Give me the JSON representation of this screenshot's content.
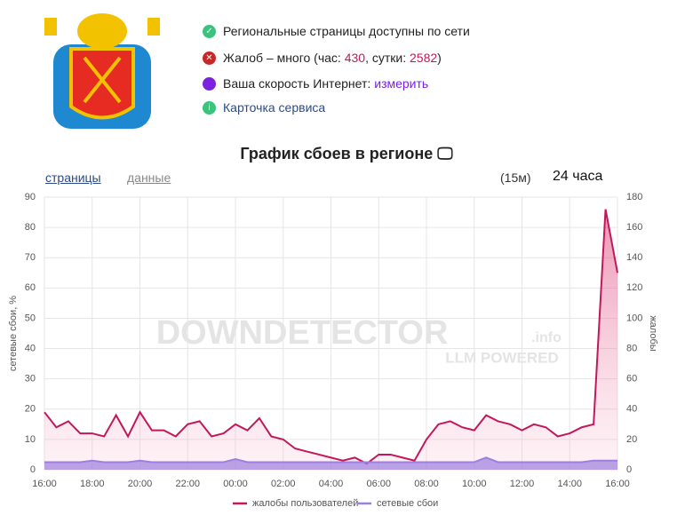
{
  "header": {
    "status": [
      {
        "text": "Региональные страницы доступны по сети"
      },
      {
        "parts": [
          "Жалоб – много (час: ",
          "430",
          ", сутки: ",
          "2582",
          ")"
        ]
      },
      {
        "text": "Ваша скорость Интернет:",
        "link": "измерить"
      },
      {
        "text": "Карточка сервиса"
      }
    ],
    "title": "График сбоев в регионе",
    "tabs": [
      "страницы",
      "данные"
    ],
    "interval": "(15м)",
    "period": "24 часа"
  },
  "watermark": {
    "brand": "DOWNDETECTOR",
    "suffix": ".info",
    "tagline": "LLM POWERED"
  },
  "chart_data": {
    "type": "line",
    "ylabel": "сетевые сбои, %",
    "y2label": "жалобы",
    "categories": [
      "16:00",
      null,
      null,
      null,
      "18:00",
      null,
      null,
      null,
      "20:00",
      null,
      null,
      null,
      "22:00",
      null,
      null,
      null,
      "00:00",
      null,
      null,
      null,
      "02:00",
      null,
      null,
      null,
      "04:00",
      null,
      null,
      null,
      "06:00",
      null,
      null,
      null,
      "08:00",
      null,
      null,
      null,
      "10:00",
      null,
      null,
      null,
      "12:00",
      null,
      null,
      null,
      "14:00",
      null,
      null,
      null,
      "16:00"
    ],
    "series": [
      {
        "name": "жалобы пользователей",
        "color": "#c2185b",
        "axis": "y2",
        "values": [
          38,
          28,
          32,
          24,
          24,
          22,
          36,
          22,
          38,
          26,
          26,
          22,
          30,
          32,
          22,
          24,
          30,
          26,
          34,
          22,
          20,
          14,
          12,
          10,
          8,
          6,
          8,
          4,
          10,
          10,
          8,
          6,
          20,
          30,
          32,
          28,
          26,
          36,
          32,
          30,
          26,
          30,
          28,
          22,
          24,
          28,
          30,
          172,
          130
        ]
      },
      {
        "name": "сетевые сбои",
        "color": "#9c7fe0",
        "values": [
          2.5,
          2.5,
          2.5,
          2.5,
          3,
          2.5,
          2.5,
          2.5,
          3,
          2.5,
          2.5,
          2.5,
          2.5,
          2.5,
          2.5,
          2.5,
          3.5,
          2.5,
          2.5,
          2.5,
          2.5,
          2.5,
          2.5,
          2.5,
          2.5,
          2.5,
          2.5,
          2.5,
          2.5,
          2.5,
          2.5,
          2.5,
          2.5,
          2.5,
          2.5,
          2.5,
          2.5,
          4,
          2.5,
          2.5,
          2.5,
          2.5,
          2.5,
          2.5,
          2.5,
          2.5,
          3,
          3,
          3
        ]
      }
    ],
    "ylim": [
      0,
      90
    ],
    "yticks": [
      0,
      10,
      20,
      30,
      40,
      50,
      60,
      70,
      80,
      90
    ],
    "y2lim": [
      0,
      180
    ],
    "y2ticks": [
      0,
      20,
      40,
      60,
      80,
      100,
      120,
      140,
      160,
      180
    ],
    "grid": true,
    "legend": "bottom"
  }
}
